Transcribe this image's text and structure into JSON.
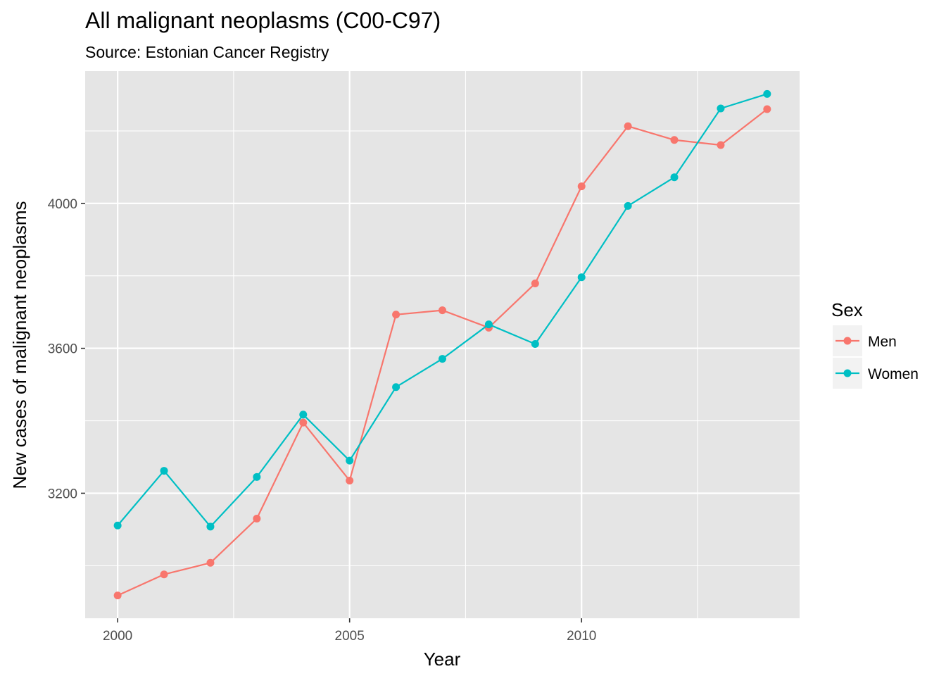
{
  "chart_data": {
    "type": "line",
    "title": "All malignant neoplasms (C00-C97)",
    "subtitle": "Source: Estonian Cancer Registry",
    "xlabel": "Year",
    "ylabel": "New cases of malignant neoplasms",
    "x": [
      2000,
      2001,
      2002,
      2003,
      2004,
      2005,
      2006,
      2007,
      2008,
      2009,
      2010,
      2011,
      2012,
      2013,
      2014
    ],
    "series": [
      {
        "name": "Men",
        "color": "#F8766D",
        "values": [
          2918,
          2976,
          3008,
          3130,
          3395,
          3235,
          3693,
          3705,
          3657,
          3779,
          4047,
          4213,
          4175,
          4161,
          4260
        ]
      },
      {
        "name": "Women",
        "color": "#00BFC4",
        "values": [
          3111,
          3262,
          3108,
          3245,
          3417,
          3290,
          3493,
          3571,
          3666,
          3612,
          3796,
          3993,
          4072,
          4262,
          4302
        ]
      }
    ],
    "xlim": [
      1999.3,
      2014.7
    ],
    "ylim": [
      2855,
      4365
    ],
    "xticks": [
      2000,
      2005,
      2010
    ],
    "xticks_minor": [
      2002.5,
      2007.5,
      2012.5
    ],
    "yticks": [
      3200,
      3600,
      4000
    ],
    "yticks_minor": [
      3000,
      3400,
      3800,
      4200
    ],
    "grid": true,
    "panel_background": "#E5E5E5",
    "grid_color": "#FFFFFF",
    "legend": {
      "title": "Sex",
      "position": "right",
      "entries": [
        "Men",
        "Women"
      ]
    }
  }
}
